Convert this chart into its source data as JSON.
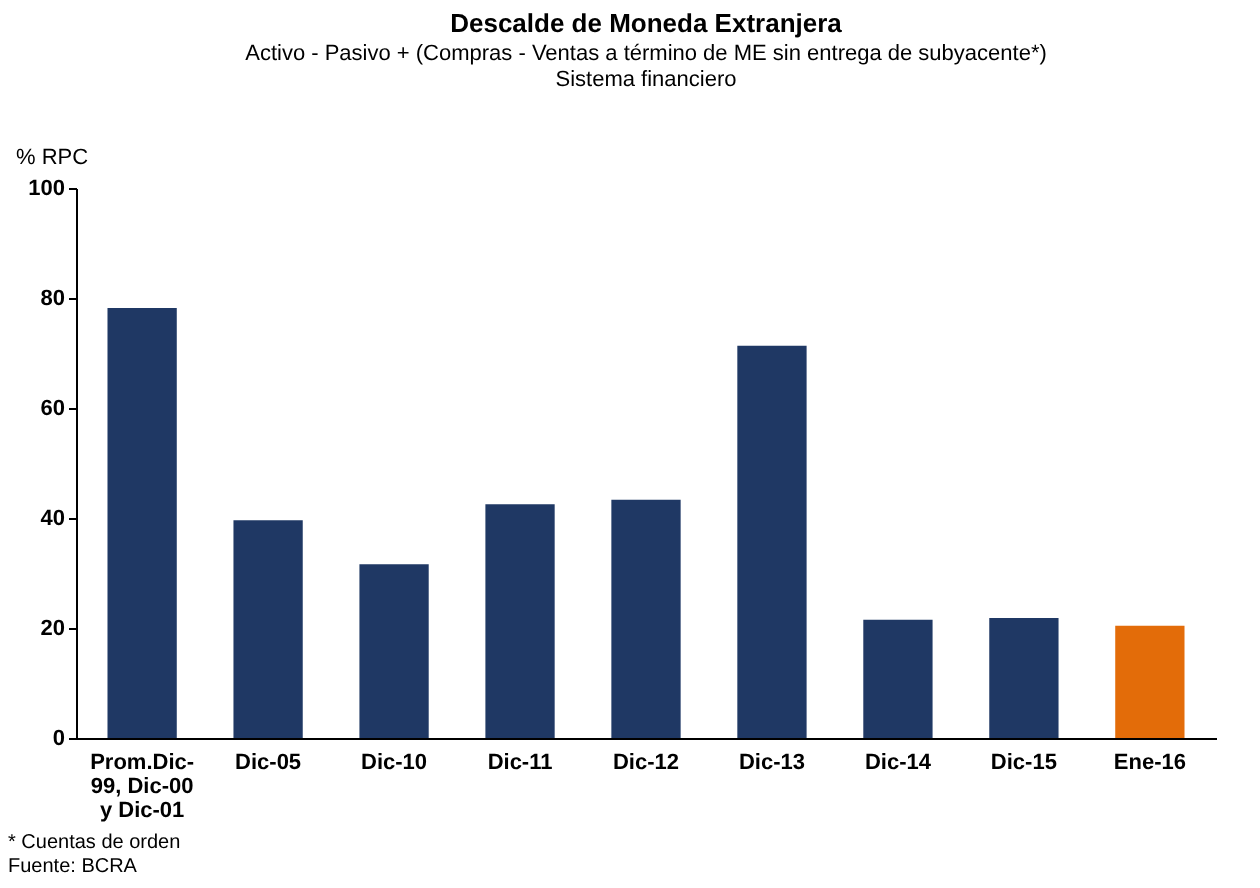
{
  "chart_data": {
    "type": "bar",
    "title": "Descalde de Moneda Extranjera",
    "subtitle": "Activo - Pasivo + (Compras - Ventas a término de ME sin entrega de subyacente*)\nSistema financiero",
    "ylabel": "% RPC",
    "categories": [
      "Prom.Dic-99, Dic-00 y Dic-01",
      "Dic-05",
      "Dic-10",
      "Dic-11",
      "Dic-12",
      "Dic-13",
      "Dic-14",
      "Dic-15",
      "Ene-16"
    ],
    "values": [
      78.2,
      39.6,
      31.6,
      42.5,
      43.3,
      71.3,
      21.5,
      21.8,
      20.4
    ],
    "colors": [
      "#1f3864",
      "#1f3864",
      "#1f3864",
      "#1f3864",
      "#1f3864",
      "#1f3864",
      "#1f3864",
      "#1f3864",
      "#e36c09"
    ],
    "ylim": [
      0,
      100
    ],
    "yticks": [
      0,
      20,
      40,
      60,
      80,
      100
    ],
    "grid": false,
    "annotations": [
      "* Cuentas de orden",
      "Fuente: BCRA"
    ]
  }
}
